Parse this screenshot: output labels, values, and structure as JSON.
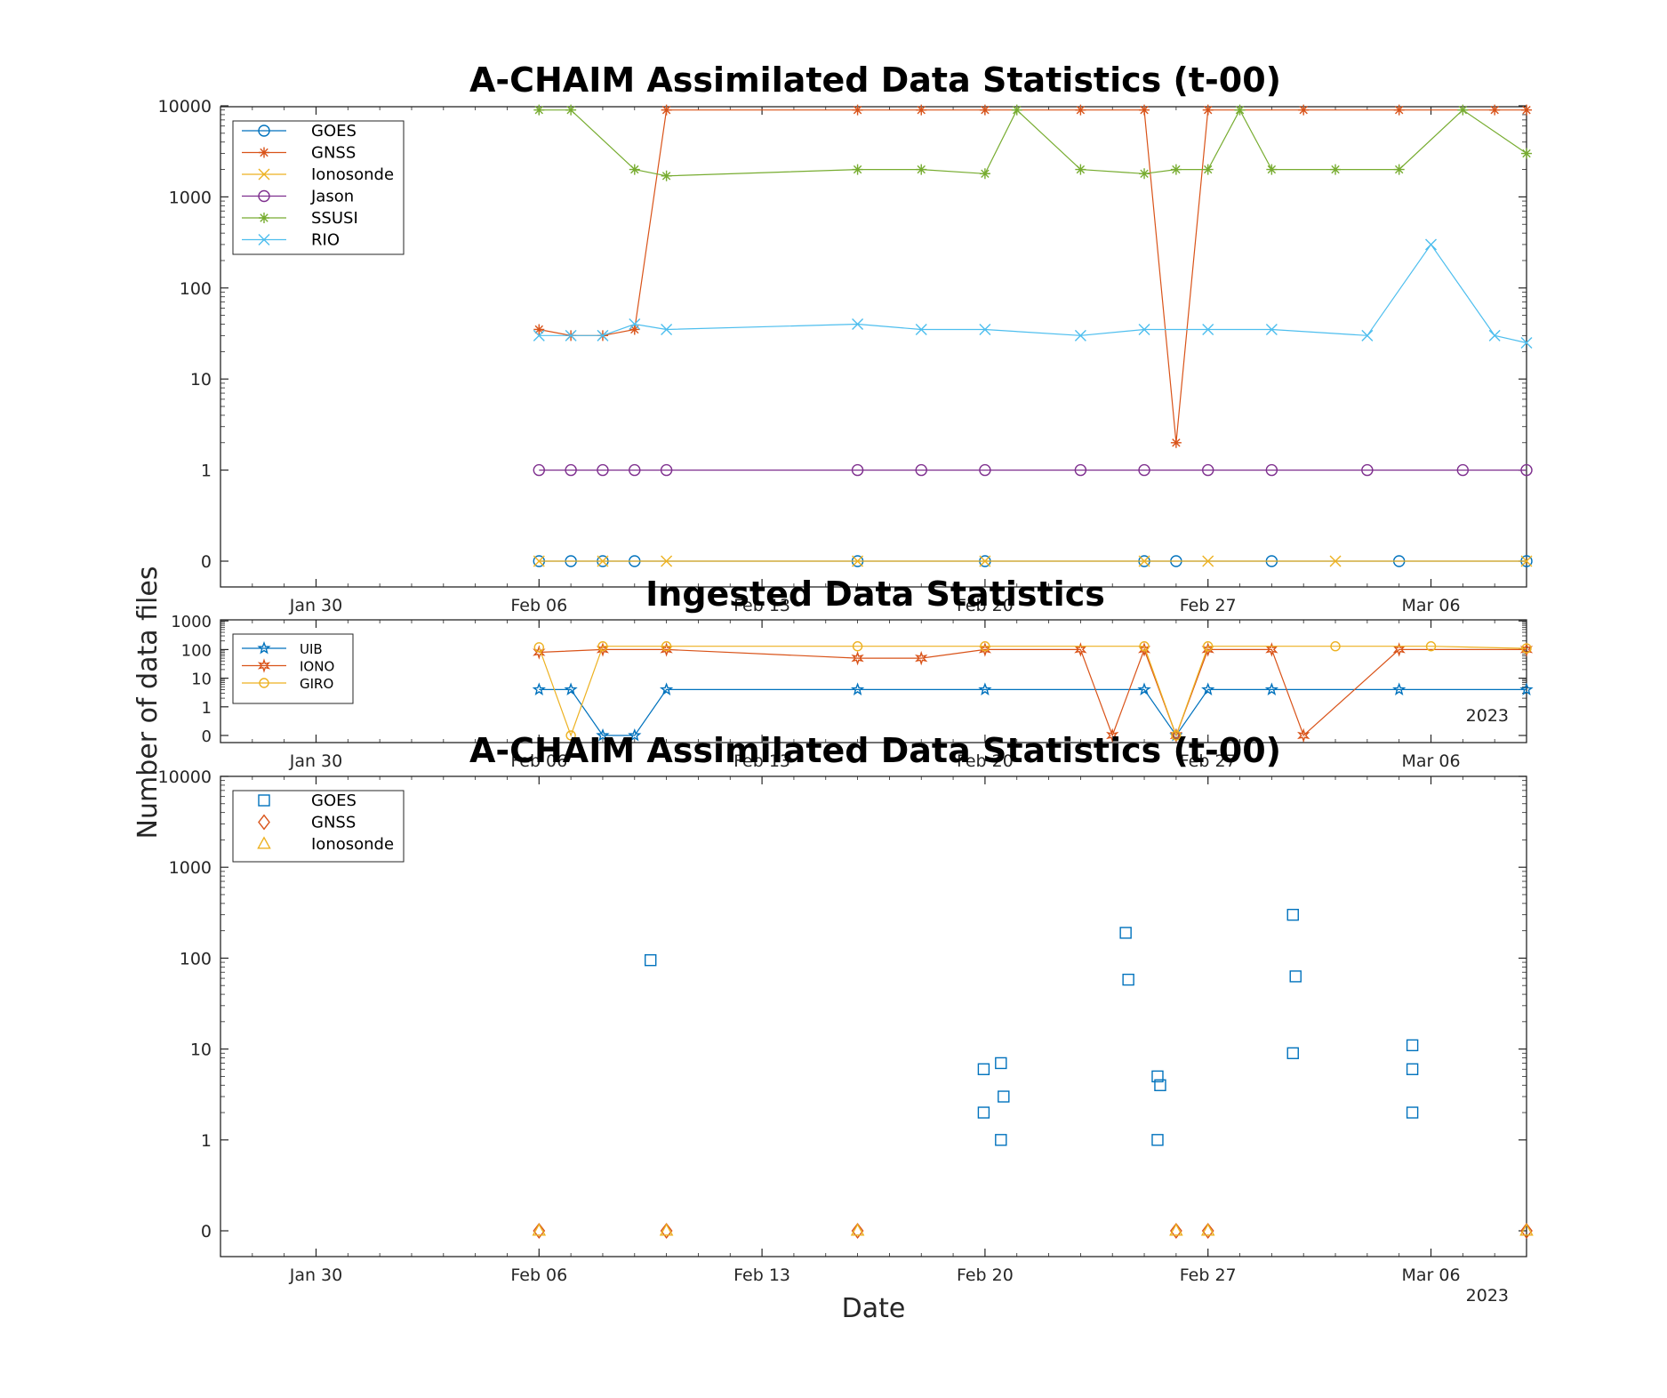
{
  "figure": {
    "ylabel": "Number of data files",
    "year_label": "2023",
    "xlabel": "Date"
  },
  "chart_data": [
    {
      "type": "line",
      "title": "A-CHAIM Assimilated Data Statistics (t-00)",
      "xlabel": "",
      "y_scale": "symlog",
      "yticks": [
        "10000",
        "1000",
        "100",
        "10",
        "1",
        "0"
      ],
      "xticks": [
        "Jan 30",
        "Feb 06",
        "Feb 13",
        "Feb 20",
        "Feb 27",
        "Mar 06"
      ],
      "xlim": [
        "2023-01-27",
        "2023-03-09"
      ],
      "legend_position": "top-left",
      "series": [
        {
          "name": "GOES",
          "color": "#0072BD",
          "marker": "circle",
          "x": [
            "2023-02-06",
            "2023-02-07",
            "2023-02-08",
            "2023-02-09",
            "2023-02-16",
            "2023-02-20",
            "2023-02-25",
            "2023-02-26",
            "2023-03-01",
            "2023-03-05",
            "2023-03-09"
          ],
          "y": [
            0,
            0,
            0,
            0,
            0,
            0,
            0,
            0,
            0,
            0,
            0
          ]
        },
        {
          "name": "GNSS",
          "color": "#D95319",
          "marker": "star",
          "x": [
            "2023-02-06",
            "2023-02-07",
            "2023-02-08",
            "2023-02-09",
            "2023-02-10",
            "2023-02-16",
            "2023-02-18",
            "2023-02-20",
            "2023-02-23",
            "2023-02-25",
            "2023-02-26",
            "2023-02-27",
            "2023-03-02",
            "2023-03-05",
            "2023-03-08",
            "2023-03-09"
          ],
          "y": [
            35,
            30,
            30,
            35,
            9000,
            9000,
            9000,
            9000,
            9000,
            9000,
            2,
            9000,
            9000,
            9000,
            9000,
            9000
          ]
        },
        {
          "name": "Ionosonde",
          "color": "#EDB120",
          "marker": "x",
          "x": [
            "2023-02-06",
            "2023-02-08",
            "2023-02-10",
            "2023-02-16",
            "2023-02-20",
            "2023-02-25",
            "2023-02-27",
            "2023-03-03",
            "2023-03-09"
          ],
          "y": [
            0,
            0,
            0,
            0,
            0,
            0,
            0,
            0,
            0
          ]
        },
        {
          "name": "Jason",
          "color": "#7E2F8E",
          "marker": "circle",
          "x": [
            "2023-02-06",
            "2023-02-07",
            "2023-02-08",
            "2023-02-09",
            "2023-02-10",
            "2023-02-16",
            "2023-02-18",
            "2023-02-20",
            "2023-02-23",
            "2023-02-25",
            "2023-02-27",
            "2023-03-01",
            "2023-03-04",
            "2023-03-07",
            "2023-03-09"
          ],
          "y": [
            1,
            1,
            1,
            1,
            1,
            1,
            1,
            1,
            1,
            1,
            1,
            1,
            1,
            1,
            1
          ]
        },
        {
          "name": "SSUSI",
          "color": "#77AC30",
          "marker": "star",
          "x": [
            "2023-02-06",
            "2023-02-07",
            "2023-02-09",
            "2023-02-10",
            "2023-02-16",
            "2023-02-18",
            "2023-02-20",
            "2023-02-21",
            "2023-02-23",
            "2023-02-25",
            "2023-02-26",
            "2023-02-27",
            "2023-02-28",
            "2023-03-01",
            "2023-03-03",
            "2023-03-05",
            "2023-03-07",
            "2023-03-09"
          ],
          "y": [
            9000,
            9000,
            2000,
            1700,
            2000,
            2000,
            1800,
            9000,
            2000,
            1800,
            2000,
            2000,
            9000,
            2000,
            2000,
            2000,
            9000,
            3000
          ]
        },
        {
          "name": "RIO",
          "color": "#4DBEEE",
          "marker": "x",
          "x": [
            "2023-02-06",
            "2023-02-07",
            "2023-02-08",
            "2023-02-09",
            "2023-02-10",
            "2023-02-16",
            "2023-02-18",
            "2023-02-20",
            "2023-02-23",
            "2023-02-25",
            "2023-02-27",
            "2023-03-01",
            "2023-03-04",
            "2023-03-06",
            "2023-03-08",
            "2023-03-09"
          ],
          "y": [
            30,
            30,
            30,
            40,
            35,
            40,
            35,
            35,
            30,
            35,
            35,
            35,
            30,
            300,
            30,
            25
          ]
        }
      ]
    },
    {
      "type": "line",
      "title": "Ingested Data Statistics",
      "xlabel": "Date",
      "y_scale": "symlog",
      "yticks": [
        "1000",
        "100",
        "10",
        "1",
        "0"
      ],
      "xticks": [
        "Jan 30",
        "Feb 06",
        "Feb 13",
        "Feb 20",
        "Feb 27",
        "Mar 06"
      ],
      "xlim": [
        "2023-01-27",
        "2023-03-09"
      ],
      "legend_position": "top-left",
      "series": [
        {
          "name": "UIB",
          "color": "#0072BD",
          "marker": "pentagram",
          "x": [
            "2023-02-06",
            "2023-02-07",
            "2023-02-08",
            "2023-02-09",
            "2023-02-10",
            "2023-02-16",
            "2023-02-20",
            "2023-02-25",
            "2023-02-26",
            "2023-02-27",
            "2023-03-01",
            "2023-03-05",
            "2023-03-09"
          ],
          "y": [
            4,
            4,
            0,
            0,
            4,
            4,
            4,
            4,
            0,
            4,
            4,
            4,
            4
          ]
        },
        {
          "name": "IONO",
          "color": "#D95319",
          "marker": "hexagram",
          "x": [
            "2023-02-06",
            "2023-02-08",
            "2023-02-10",
            "2023-02-16",
            "2023-02-18",
            "2023-02-20",
            "2023-02-23",
            "2023-02-24",
            "2023-02-25",
            "2023-02-26",
            "2023-02-27",
            "2023-03-01",
            "2023-03-02",
            "2023-03-05",
            "2023-03-09"
          ],
          "y": [
            80,
            100,
            100,
            50,
            50,
            100,
            100,
            0,
            100,
            0,
            100,
            100,
            0,
            100,
            100
          ]
        },
        {
          "name": "GIRO",
          "color": "#EDB120",
          "marker": "circle",
          "x": [
            "2023-02-06",
            "2023-02-07",
            "2023-02-08",
            "2023-02-10",
            "2023-02-16",
            "2023-02-20",
            "2023-02-25",
            "2023-02-26",
            "2023-02-27",
            "2023-03-03",
            "2023-03-06",
            "2023-03-09"
          ],
          "y": [
            120,
            0,
            130,
            130,
            130,
            130,
            130,
            0,
            130,
            130,
            130,
            110
          ]
        }
      ]
    },
    {
      "type": "scatter",
      "title": "A-CHAIM Assimilated Data Statistics (t-00)",
      "xlabel": "Date",
      "y_scale": "symlog",
      "yticks": [
        "10000",
        "1000",
        "100",
        "10",
        "1",
        "0"
      ],
      "xticks": [
        "Jan 30",
        "Feb 06",
        "Feb 13",
        "Feb 20",
        "Feb 27",
        "Mar 06"
      ],
      "xlim": [
        "2023-01-27",
        "2023-03-09"
      ],
      "legend_position": "top-left",
      "series": [
        {
          "name": "GOES",
          "color": "#0072BD",
          "marker": "square",
          "x": [
            "2023-02-09T12:00",
            "2023-02-19T23:00",
            "2023-02-19T23:00",
            "2023-02-20T12:00",
            "2023-02-20T14:00",
            "2023-02-20T12:00",
            "2023-02-24T10:00",
            "2023-02-24T12:00",
            "2023-02-25T10:00",
            "2023-02-25T12:00",
            "2023-02-25T10:00",
            "2023-03-01T16:00",
            "2023-03-01T18:00",
            "2023-03-01T16:00",
            "2023-03-05T10:00",
            "2023-03-05T10:00",
            "2023-03-05T10:00"
          ],
          "y": [
            95,
            6,
            2,
            7,
            3,
            1,
            190,
            58,
            5,
            4,
            1,
            300,
            63,
            9,
            11,
            6,
            2
          ]
        },
        {
          "name": "GNSS",
          "color": "#D95319",
          "marker": "diamond",
          "x": [
            "2023-02-06",
            "2023-02-10",
            "2023-02-16",
            "2023-02-26",
            "2023-02-27",
            "2023-03-09"
          ],
          "y": [
            0,
            0,
            0,
            0,
            0,
            0
          ]
        },
        {
          "name": "Ionosonde",
          "color": "#EDB120",
          "marker": "triangle",
          "x": [
            "2023-02-06",
            "2023-02-10",
            "2023-02-16",
            "2023-02-26",
            "2023-02-27",
            "2023-03-09"
          ],
          "y": [
            0,
            0,
            0,
            0,
            0,
            0
          ]
        }
      ]
    }
  ]
}
